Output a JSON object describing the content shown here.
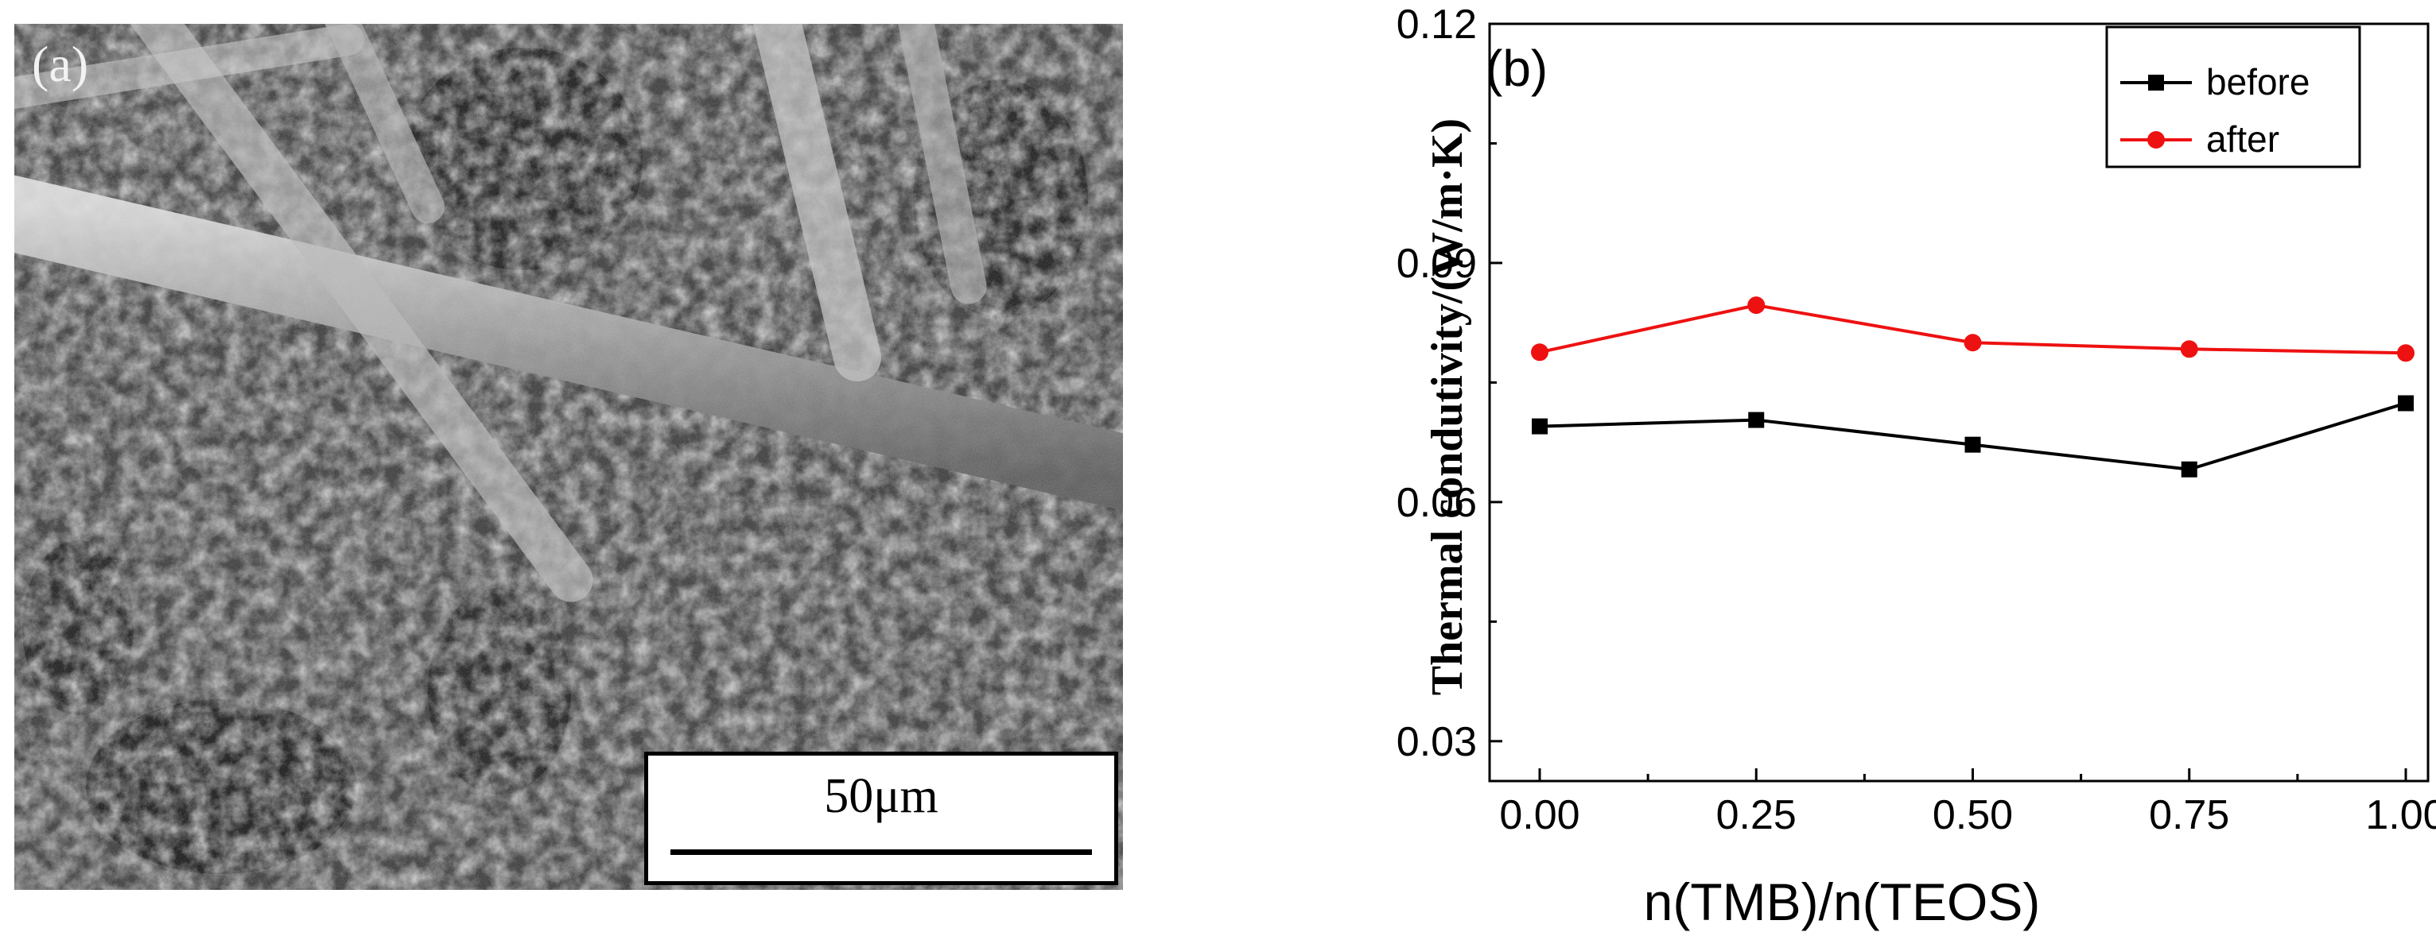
{
  "panel_a": {
    "label": "(a)",
    "scale_bar_text": "50μm"
  },
  "chart_data": {
    "type": "line",
    "panel_label": "(b)",
    "xlabel": "n(TMB)/n(TEOS)",
    "ylabel": "Thermal condutivity/(W/m·K)",
    "x": [
      0.0,
      0.25,
      0.5,
      0.75,
      1.0
    ],
    "x_tick_labels": [
      "0.00",
      "0.25",
      "0.50",
      "0.75",
      "1.00"
    ],
    "y_tick_labels": [
      "0.03",
      "0.06",
      "0.09",
      "0.12"
    ],
    "y_ticks": [
      0.03,
      0.06,
      0.09,
      0.12
    ],
    "xlim": [
      -0.05,
      1.05
    ],
    "ylim": [
      0.025,
      0.12
    ],
    "grid": false,
    "legend_position": "top-right",
    "series": [
      {
        "name": "before",
        "color": "#000000",
        "marker": "square",
        "values": [
          0.0695,
          0.0703,
          0.0672,
          0.0641,
          0.0724
        ]
      },
      {
        "name": "after",
        "color": "#ee1111",
        "marker": "circle",
        "values": [
          0.0788,
          0.0847,
          0.08,
          0.0792,
          0.0787
        ]
      }
    ]
  }
}
